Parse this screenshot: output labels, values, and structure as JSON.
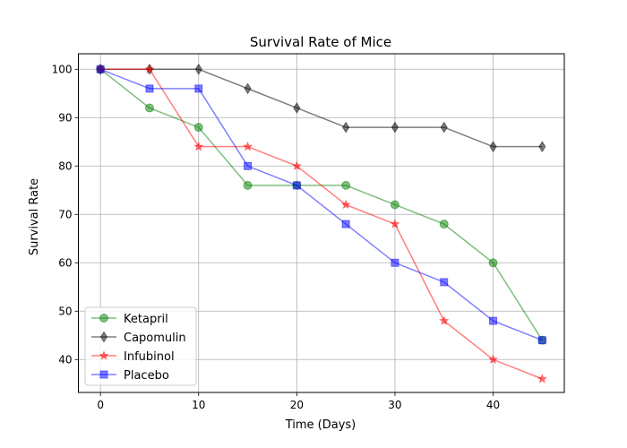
{
  "chart_data": {
    "type": "line",
    "title": "Survival Rate of Mice",
    "xlabel": "Time (Days)",
    "ylabel": "Survival Rate",
    "xlim": [
      -2.25,
      47.25
    ],
    "ylim": [
      33.2,
      103.2
    ],
    "xticks": [
      0,
      10,
      20,
      30,
      40
    ],
    "yticks": [
      40,
      50,
      60,
      70,
      80,
      90,
      100
    ],
    "grid": true,
    "legend_position": "lower-left",
    "x": [
      0,
      5,
      10,
      15,
      20,
      25,
      30,
      35,
      40,
      45
    ],
    "series": [
      {
        "name": "Ketapril",
        "color": "#008000",
        "marker": "circle",
        "values": [
          100,
          92,
          88,
          76,
          76,
          76,
          72,
          68,
          60,
          44
        ]
      },
      {
        "name": "Capomulin",
        "color": "#000000",
        "marker": "diamond",
        "values": [
          100,
          100,
          100,
          96,
          92,
          88,
          88,
          88,
          84,
          84
        ]
      },
      {
        "name": "Infubinol",
        "color": "#ff0000",
        "marker": "star",
        "values": [
          100,
          100,
          84,
          84,
          80,
          72,
          68,
          48,
          40,
          36
        ]
      },
      {
        "name": "Placebo",
        "color": "#0000ff",
        "marker": "square",
        "values": [
          100,
          96,
          96,
          80,
          76,
          68,
          60,
          56,
          48,
          44
        ]
      }
    ]
  }
}
